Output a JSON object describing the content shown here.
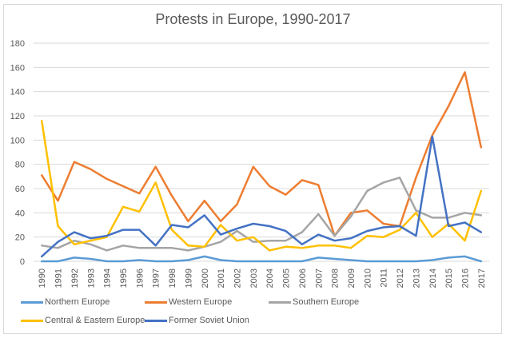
{
  "chart_data": {
    "type": "line",
    "title": "Protests in Europe, 1990-2017",
    "xlabel": "",
    "ylabel": "",
    "ylim": [
      0,
      180
    ],
    "yticks": [
      "0",
      "20",
      "40",
      "60",
      "80",
      "100",
      "120",
      "140",
      "160",
      "180"
    ],
    "grid": true,
    "legend_position": "bottom",
    "x": [
      "1990",
      "1991",
      "1992",
      "1993",
      "1994",
      "1995",
      "1996",
      "1997",
      "1998",
      "1999",
      "2000",
      "2001",
      "2002",
      "2003",
      "2004",
      "2005",
      "2006",
      "2007",
      "2008",
      "2009",
      "2010",
      "2011",
      "2012",
      "2013",
      "2014",
      "2015",
      "2016",
      "2017"
    ],
    "series": [
      {
        "name": "Northern Europe",
        "color": "#5b9bd5",
        "values": [
          0,
          0,
          3,
          2,
          0,
          0,
          1,
          0,
          0,
          1,
          4,
          1,
          0,
          0,
          0,
          0,
          0,
          3,
          2,
          1,
          0,
          0,
          0,
          0,
          1,
          3,
          4,
          0
        ]
      },
      {
        "name": "Western Europe",
        "color": "#ed7d31",
        "values": [
          71,
          50,
          82,
          76,
          68,
          62,
          56,
          78,
          54,
          33,
          50,
          33,
          47,
          78,
          62,
          55,
          67,
          63,
          21,
          40,
          42,
          31,
          29,
          69,
          104,
          128,
          156,
          94
        ]
      },
      {
        "name": "Southern Europe",
        "color": "#a5a5a5",
        "values": [
          13,
          11,
          17,
          14,
          9,
          13,
          11,
          11,
          11,
          9,
          12,
          16,
          25,
          16,
          17,
          17,
          24,
          39,
          21,
          37,
          58,
          65,
          69,
          42,
          36,
          36,
          40,
          38
        ]
      },
      {
        "name": "Central & Eastern Europe",
        "color": "#ffc000",
        "values": [
          116,
          29,
          14,
          17,
          20,
          45,
          41,
          65,
          26,
          13,
          12,
          30,
          17,
          20,
          9,
          12,
          11,
          13,
          13,
          11,
          21,
          20,
          26,
          40,
          20,
          31,
          17,
          58
        ]
      },
      {
        "name": "Former Soviet Union",
        "color": "#4472c4",
        "values": [
          4,
          16,
          24,
          19,
          21,
          26,
          26,
          13,
          30,
          28,
          38,
          22,
          27,
          31,
          29,
          25,
          14,
          22,
          17,
          19,
          25,
          28,
          29,
          21,
          103,
          29,
          32,
          24
        ]
      }
    ]
  }
}
